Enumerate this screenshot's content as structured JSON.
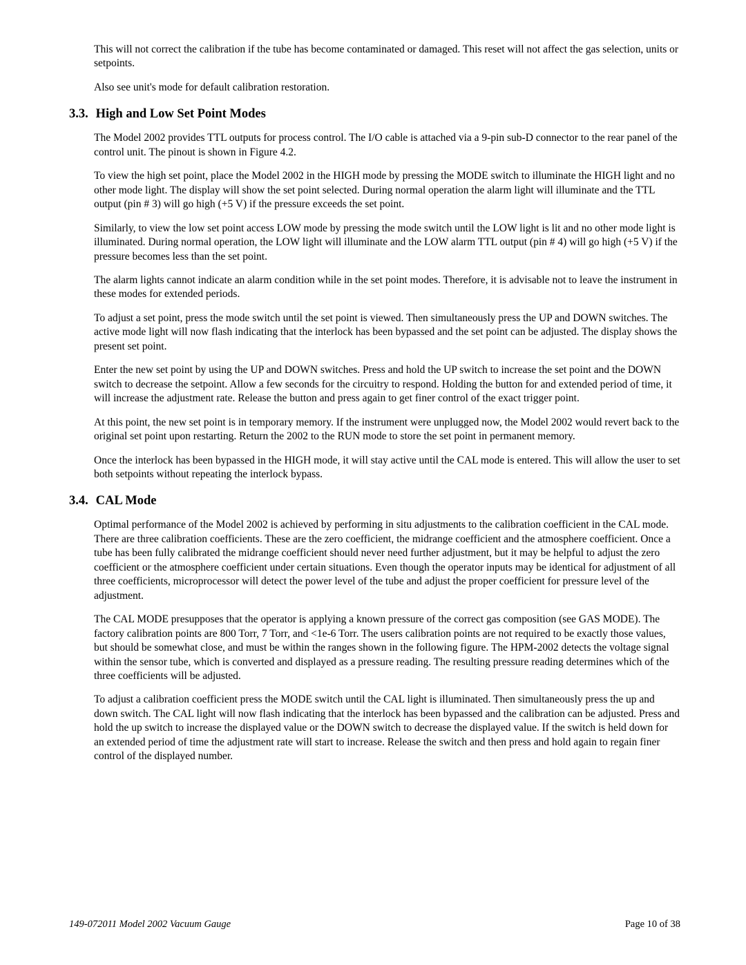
{
  "paragraphs": {
    "intro1": "This will not correct the calibration if the tube has become contaminated or damaged. This reset will not affect the gas selection, units or setpoints.",
    "intro2": "Also see unit's mode for default calibration restoration."
  },
  "section33": {
    "number": "3.3.",
    "title": "High and Low Set Point Modes",
    "p1": "The Model 2002 provides TTL outputs for process control.  The I/O cable is attached via a 9-pin sub-D connector to the rear panel of the control unit.  The pinout is shown in Figure 4.2.",
    "p2": "To view the high set point, place the Model 2002 in the HIGH mode by pressing the MODE switch to illuminate the HIGH light and no other mode light.  The display will show the set point selected. During normal operation the alarm light will illuminate and the TTL output (pin  # 3) will go high (+5 V) if the pressure exceeds the set point.",
    "p3": "Similarly, to view the low set point access LOW mode by pressing the mode switch until the LOW light is lit and no other mode light is illuminated. During normal operation, the LOW light will illuminate and the LOW alarm TTL output (pin  # 4) will go high (+5 V) if the pressure becomes less than the set point.",
    "p4": "The alarm lights cannot indicate an alarm condition while in the set point modes.  Therefore, it is advisable not to leave the instrument in these modes for extended periods.",
    "p5": "To adjust a set point, press the mode switch until the set point is viewed.  Then simultaneously press the UP and DOWN switches.  The active mode light will now flash indicating that the interlock has been bypassed and the set point can be adjusted.  The display shows the present set point.",
    "p6": "Enter the new set point by using the UP and DOWN switches. Press and hold the UP switch to increase the set point and the DOWN switch to decrease the setpoint. Allow a few seconds for the circuitry to respond. Holding the button for and extended period of time, it will increase the adjustment rate. Release the button and press again to get finer control of the exact trigger point.",
    "p7": "At this point, the new set point is in temporary memory.  If the instrument were unplugged now, the Model 2002 would revert back to the original set point upon restarting.  Return the 2002 to the RUN mode to store the set point in permanent memory.",
    "p8": "Once the interlock has been bypassed in the HIGH mode, it will stay active until the CAL mode is entered.  This will allow the user to set both setpoints without repeating the interlock bypass."
  },
  "section34": {
    "number": "3.4.",
    "title": "CAL Mode",
    "p1": "Optimal performance of the Model 2002 is achieved by performing in situ adjustments to the calibration coefficient in the CAL mode.  There are three calibration coefficients.  These are the zero coefficient, the midrange coefficient and the atmosphere coefficient. Once a tube has been fully calibrated the midrange coefficient should never need further adjustment, but it may be helpful to adjust the zero coefficient or the atmosphere coefficient under certain situations.  Even though the operator inputs may be identical for adjustment of all three coefficients, microprocessor will detect the power level of the tube and adjust the proper coefficient for pressure level of the adjustment.",
    "p2": " The CAL MODE presupposes that the operator is applying a known pressure of the correct gas composition (see GAS MODE). The factory calibration points are 800 Torr, 7 Torr, and <1e-6 Torr.  The users calibration points are not required to be exactly those values, but should be somewhat close, and must be within the ranges shown in the following figure.  The HPM-2002 detects the voltage signal within the sensor tube, which is converted and displayed as a pressure reading.  The resulting pressure reading determines which of the three coefficients will be adjusted.",
    "p3": "To adjust a calibration coefficient press the MODE switch until the CAL light is illuminated.  Then simultaneously press the up and down switch.  The CAL light will now flash indicating that the interlock has been bypassed and the calibration can be adjusted. Press and hold the up switch to increase the displayed value or the DOWN switch to decrease the displayed value.  If the switch is held down for an extended period of time the adjustment rate will start to increase.  Release the switch and then press and hold again to regain finer control of the displayed number."
  },
  "footer": {
    "left": "149-072011 Model 2002 Vacuum Gauge",
    "right": "Page 10 of 38"
  }
}
